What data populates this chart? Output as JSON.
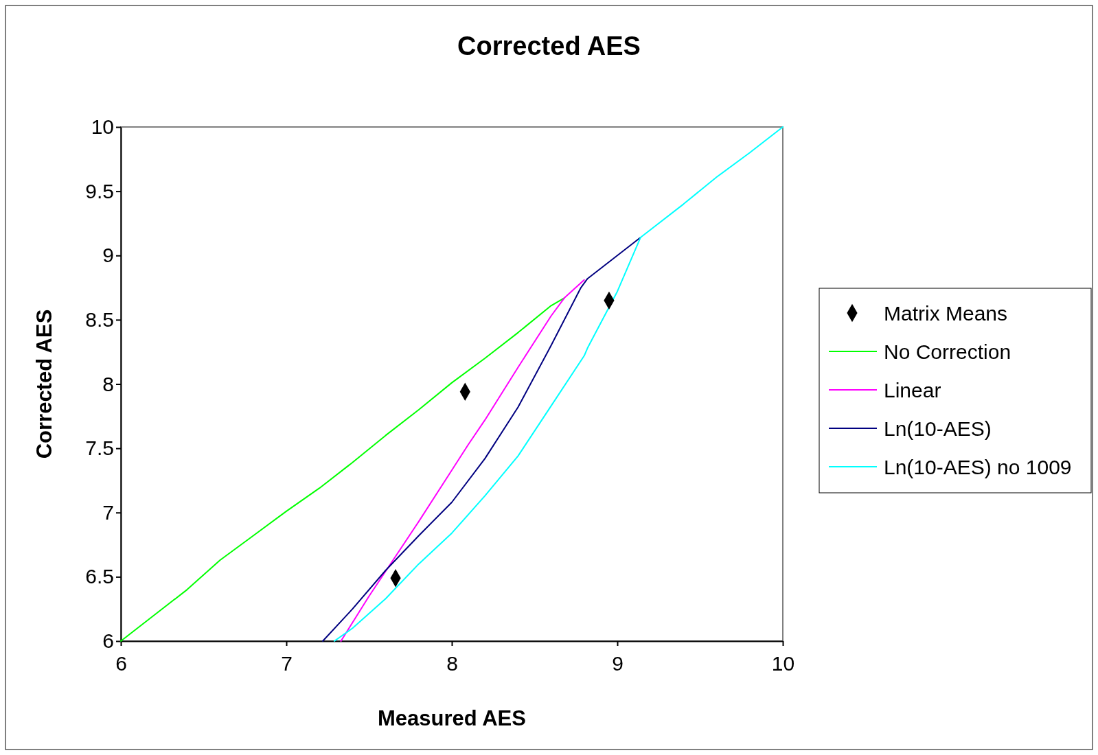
{
  "chart_data": {
    "type": "line",
    "title": "Corrected AES",
    "xlabel": "Measured AES",
    "ylabel": "Corrected AES",
    "xlim": [
      6,
      10
    ],
    "ylim": [
      6,
      10
    ],
    "xticks": [
      6,
      7,
      8,
      9,
      10
    ],
    "yticks": [
      6,
      6.5,
      7,
      7.5,
      8,
      8.5,
      9,
      9.5,
      10
    ],
    "grid": false,
    "legend": "right",
    "line_style": "solid",
    "series": [
      {
        "name": "Matrix Means",
        "type": "scatter",
        "marker": "diamond",
        "color": "#000000",
        "x": [
          7.66,
          8.08,
          8.95
        ],
        "values": [
          6.49,
          7.94,
          8.65
        ]
      },
      {
        "name": "No Correction",
        "color": "#00ff00",
        "x": [
          6,
          6.2,
          6.4,
          6.6,
          6.8,
          7,
          7.2,
          7.4,
          7.6,
          7.8,
          8,
          8.2,
          8.4,
          8.6,
          8.68
        ],
        "values": [
          6,
          6.2,
          6.4,
          6.63,
          6.82,
          7.01,
          7.19,
          7.39,
          7.6,
          7.8,
          8.01,
          8.2,
          8.4,
          8.61,
          8.67
        ]
      },
      {
        "name": "Linear",
        "color": "#ff00ff",
        "x": [
          7.33,
          7.5,
          7.8,
          8,
          8.1,
          8.2,
          8.4,
          8.6,
          8.68,
          8.8
        ],
        "values": [
          6,
          6.35,
          6.93,
          7.33,
          7.53,
          7.72,
          8.13,
          8.53,
          8.67,
          8.81
        ]
      },
      {
        "name": "Ln(10-AES)",
        "color": "#000080",
        "x": [
          7.22,
          7.4,
          7.6,
          7.8,
          8,
          8.2,
          8.4,
          8.6,
          8.78,
          8.82,
          9,
          9.14
        ],
        "values": [
          6,
          6.25,
          6.55,
          6.82,
          7.08,
          7.42,
          7.82,
          8.3,
          8.75,
          8.82,
          9,
          9.14
        ]
      },
      {
        "name": "Ln(10-AES) no 1009",
        "color": "#00ffff",
        "x": [
          7.29,
          7.4,
          7.6,
          7.8,
          8,
          8.2,
          8.4,
          8.6,
          8.8,
          8.82,
          9,
          9.14,
          9.4,
          9.6,
          9.8,
          10
        ],
        "values": [
          6,
          6.1,
          6.33,
          6.6,
          6.84,
          7.13,
          7.44,
          7.83,
          8.22,
          8.28,
          8.72,
          9.14,
          9.4,
          9.61,
          9.8,
          10
        ]
      }
    ]
  }
}
